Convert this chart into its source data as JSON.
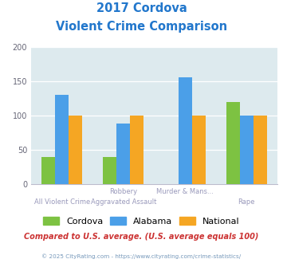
{
  "title_line1": "2017 Cordova",
  "title_line2": "Violent Crime Comparison",
  "category_top": [
    "",
    "Robbery",
    "Murder & Mans...",
    ""
  ],
  "category_bottom": [
    "All Violent Crime",
    "Aggravated Assault",
    "",
    "Rape"
  ],
  "cordova": [
    40,
    40,
    0,
    120
  ],
  "alabama": [
    131,
    88,
    156,
    100
  ],
  "national": [
    100,
    100,
    100,
    100
  ],
  "color_cordova": "#7dc242",
  "color_alabama": "#4b9fe8",
  "color_national": "#f5a623",
  "ylim": [
    0,
    200
  ],
  "yticks": [
    0,
    50,
    100,
    150,
    200
  ],
  "bg_color": "#ddeaee",
  "footnote": "Compared to U.S. average. (U.S. average equals 100)",
  "copyright": "© 2025 CityRating.com - https://www.cityrating.com/crime-statistics/",
  "title_color": "#2277cc",
  "footnote_color": "#cc3333",
  "copyright_color": "#7799bb",
  "label_color": "#9999bb"
}
